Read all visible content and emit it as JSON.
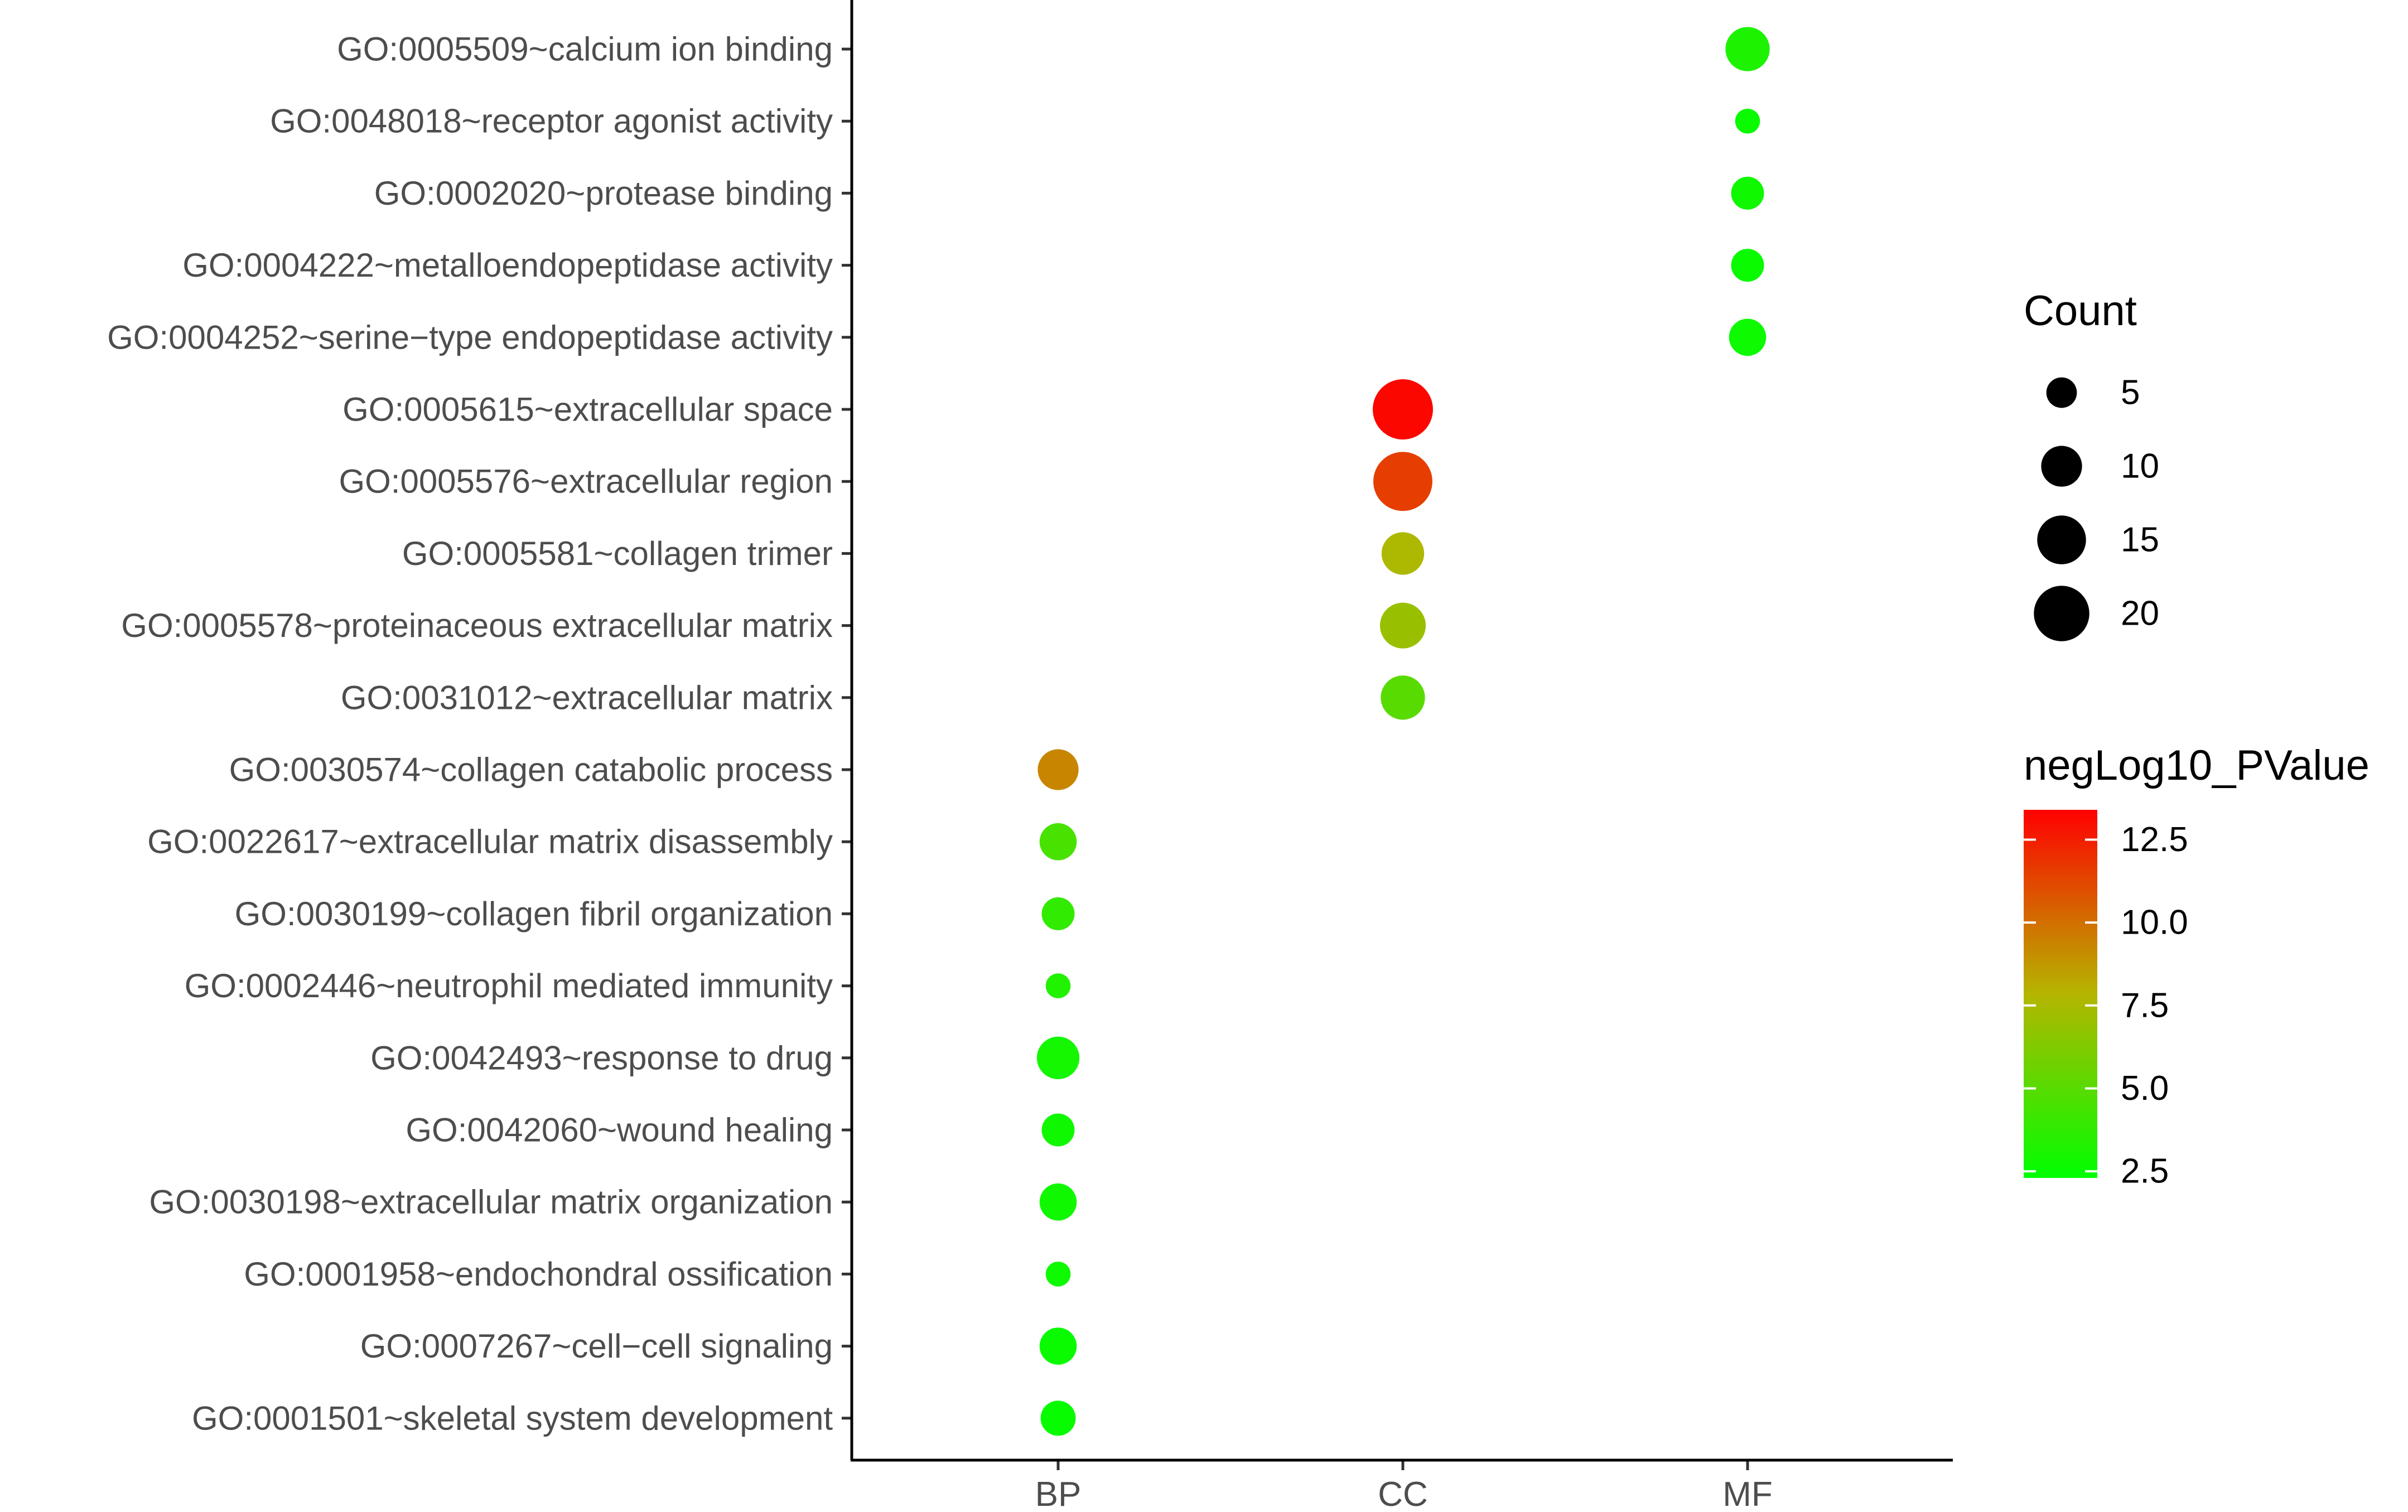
{
  "chart_data": {
    "type": "scatter",
    "title": "",
    "xlabel": "",
    "ylabel": "",
    "x_categories": [
      "BP",
      "CC",
      "MF"
    ],
    "y_categories": [
      "GO:0005509~calcium ion binding",
      "GO:0048018~receptor agonist activity",
      "GO:0002020~protease binding",
      "GO:0004222~metalloendopeptidase activity",
      "GO:0004252~serine−type endopeptidase activity",
      "GO:0005615~extracellular space",
      "GO:0005576~extracellular region",
      "GO:0005581~collagen trimer",
      "GO:0005578~proteinaceous extracellular matrix",
      "GO:0031012~extracellular matrix",
      "GO:0030574~collagen catabolic process",
      "GO:0022617~extracellular matrix disassembly",
      "GO:0030199~collagen fibril organization",
      "GO:0002446~neutrophil mediated immunity",
      "GO:0042493~response to drug",
      "GO:0042060~wound healing",
      "GO:0030198~extracellular matrix organization",
      "GO:0001958~endochondral ossification",
      "GO:0007267~cell−cell signaling",
      "GO:0001501~skeletal system development"
    ],
    "points": [
      {
        "term": "GO:0005509~calcium ion binding",
        "category": "MF",
        "count": 12,
        "negLog10_PValue": 3.2
      },
      {
        "term": "GO:0048018~receptor agonist activity",
        "category": "MF",
        "count": 3,
        "negLog10_PValue": 2.6
      },
      {
        "term": "GO:0002020~protease binding",
        "category": "MF",
        "count": 6,
        "negLog10_PValue": 2.8
      },
      {
        "term": "GO:0004222~metalloendopeptidase activity",
        "category": "MF",
        "count": 6,
        "negLog10_PValue": 2.6
      },
      {
        "term": "GO:0004252~serine−type endopeptidase activity",
        "category": "MF",
        "count": 8,
        "negLog10_PValue": 2.7
      },
      {
        "term": "GO:0005615~extracellular space",
        "category": "CC",
        "count": 24,
        "negLog10_PValue": 13.2
      },
      {
        "term": "GO:0005576~extracellular region",
        "category": "CC",
        "count": 23,
        "negLog10_PValue": 11.5
      },
      {
        "term": "GO:0005581~collagen trimer",
        "category": "CC",
        "count": 11,
        "negLog10_PValue": 7.6
      },
      {
        "term": "GO:0005578~proteinaceous extracellular matrix",
        "category": "CC",
        "count": 13,
        "negLog10_PValue": 7.0
      },
      {
        "term": "GO:0031012~extracellular matrix",
        "category": "CC",
        "count": 12,
        "negLog10_PValue": 5.0
      },
      {
        "term": "GO:0030574~collagen catabolic process",
        "category": "BP",
        "count": 10,
        "negLog10_PValue": 9.3
      },
      {
        "term": "GO:0022617~extracellular matrix disassembly",
        "category": "BP",
        "count": 8,
        "negLog10_PValue": 4.5
      },
      {
        "term": "GO:0030199~collagen fibril organization",
        "category": "BP",
        "count": 6,
        "negLog10_PValue": 3.8
      },
      {
        "term": "GO:0002446~neutrophil mediated immunity",
        "category": "BP",
        "count": 3,
        "negLog10_PValue": 3.3
      },
      {
        "term": "GO:0042493~response to drug",
        "category": "BP",
        "count": 11,
        "negLog10_PValue": 2.9
      },
      {
        "term": "GO:0042060~wound healing",
        "category": "BP",
        "count": 6,
        "negLog10_PValue": 2.8
      },
      {
        "term": "GO:0030198~extracellular matrix organization",
        "category": "BP",
        "count": 8,
        "negLog10_PValue": 2.8
      },
      {
        "term": "GO:0001958~endochondral ossification",
        "category": "BP",
        "count": 3,
        "negLog10_PValue": 2.7
      },
      {
        "term": "GO:0007267~cell−cell signaling",
        "category": "BP",
        "count": 8,
        "negLog10_PValue": 2.6
      },
      {
        "term": "GO:0001501~skeletal system development",
        "category": "BP",
        "count": 7,
        "negLog10_PValue": 2.5
      }
    ],
    "size_legend": {
      "title": "Count",
      "breaks": [
        5,
        10,
        15,
        20
      ],
      "labels": [
        "5",
        "10",
        "15",
        "20"
      ]
    },
    "color_legend": {
      "title": "negLog10_PValue",
      "min": 2.3,
      "max": 13.4,
      "low_color": "#00ff00",
      "high_color": "#ff0000",
      "breaks": [
        2.5,
        5.0,
        7.5,
        10.0,
        12.5
      ],
      "labels": [
        "2.5",
        "5.0",
        "7.5",
        "10.0",
        "12.5"
      ]
    },
    "grid": false,
    "legend_position": "right"
  }
}
